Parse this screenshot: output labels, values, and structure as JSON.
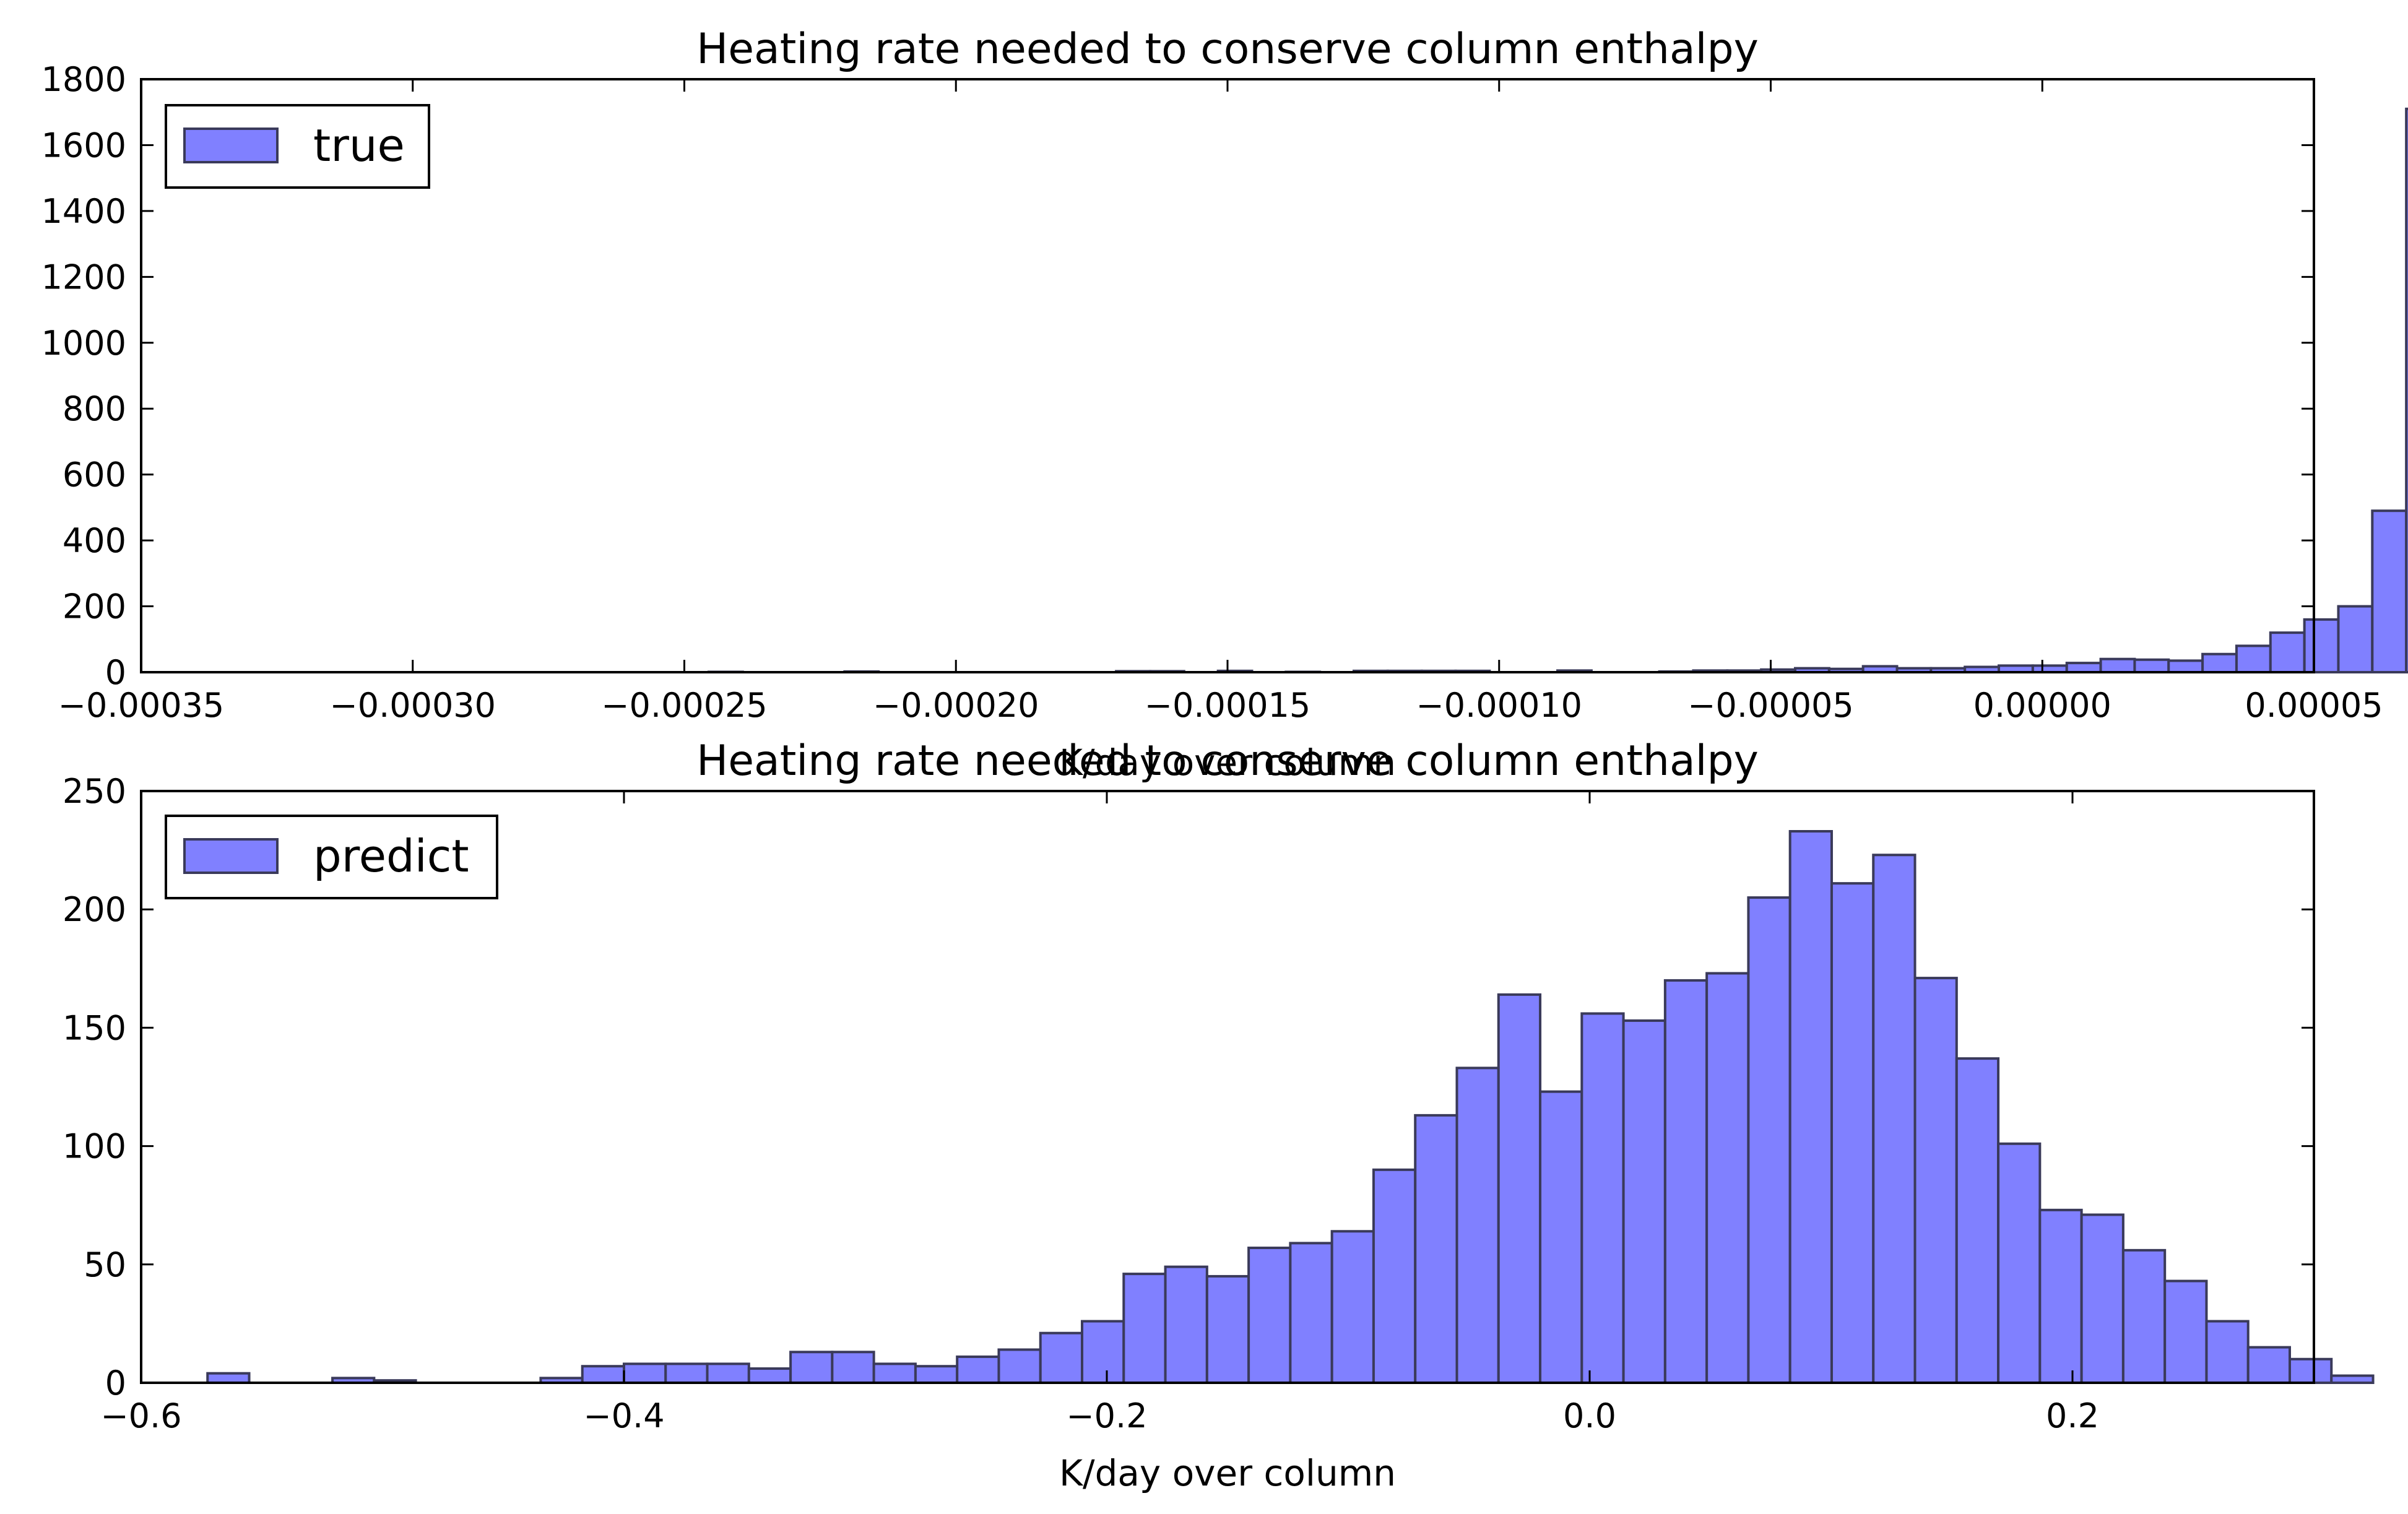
{
  "chart_data": [
    {
      "type": "bar",
      "title": "Heating rate needed to conserve column enthalpy",
      "xlabel": "K/day over column",
      "ylabel": "",
      "xlim": [
        -0.00035,
        5e-05
      ],
      "ylim": [
        0,
        1800
      ],
      "xticks": [
        -0.00035,
        -0.0003,
        -0.00025,
        -0.0002,
        -0.00015,
        -0.0001,
        -5e-05,
        0.0,
        5e-05
      ],
      "xtick_labels": [
        "−0.00035",
        "−0.00030",
        "−0.00025",
        "−0.00020",
        "−0.00015",
        "−0.00010",
        "−0.00005",
        "0.00000",
        "0.00005"
      ],
      "yticks": [
        0,
        200,
        400,
        600,
        800,
        1000,
        1200,
        1400,
        1600,
        1800
      ],
      "ytick_labels": [
        "0",
        "200",
        "400",
        "600",
        "800",
        "1000",
        "1200",
        "1400",
        "1600",
        "1800"
      ],
      "legend": "top-left",
      "series": [
        {
          "name": "true",
          "color": "#8080ff",
          "bin_start": -0.000333,
          "bin_width": 6.25e-06,
          "values": [
            0,
            0,
            0,
            0,
            0,
            0,
            0,
            0,
            0,
            0,
            0,
            0,
            0,
            0,
            1,
            0,
            0,
            0,
            2,
            0,
            0,
            0,
            0,
            0,
            0,
            0,
            3,
            3,
            0,
            4,
            0,
            1,
            0,
            4,
            4,
            4,
            4,
            0,
            0,
            5,
            0,
            0,
            2,
            5,
            5,
            8,
            12,
            10,
            18,
            12,
            12,
            16,
            20,
            20,
            28,
            40,
            38,
            35,
            55,
            80,
            120,
            160,
            200,
            490,
            1710
          ]
        }
      ]
    },
    {
      "type": "bar",
      "title": "Heating rate needed to conserve column enthalpy",
      "xlabel": "K/day over column",
      "ylabel": "",
      "xlim": [
        -0.6,
        0.3
      ],
      "ylim": [
        0,
        250
      ],
      "xticks": [
        -0.6,
        -0.4,
        -0.2,
        0.0,
        0.2
      ],
      "xtick_labels": [
        "−0.6",
        "−0.4",
        "−0.2",
        "0.0",
        "0.2"
      ],
      "yticks": [
        0,
        50,
        100,
        150,
        200,
        250
      ],
      "ytick_labels": [
        "0",
        "50",
        "100",
        "150",
        "200",
        "250"
      ],
      "legend": "top-left",
      "series": [
        {
          "name": "predict",
          "color": "#8080ff",
          "bin_start": -0.5725,
          "bin_width": 0.01725,
          "values": [
            4,
            0,
            0,
            2,
            1,
            0,
            0,
            0,
            2,
            7,
            8,
            8,
            8,
            6,
            13,
            13,
            8,
            7,
            11,
            14,
            21,
            26,
            46,
            49,
            45,
            57,
            59,
            64,
            90,
            113,
            133,
            164,
            123,
            156,
            153,
            170,
            173,
            205,
            233,
            211,
            223,
            171,
            137,
            101,
            73,
            71,
            56,
            43,
            26,
            15,
            10,
            3
          ]
        }
      ]
    }
  ]
}
